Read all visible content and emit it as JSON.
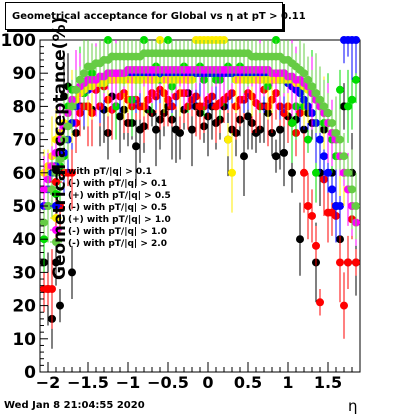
{
  "chart_data": {
    "type": "scatter",
    "title": "Geometrical acceptance for Global vs   η at pT > 0.11",
    "xlabel": "η",
    "ylabel": "Geometrical acceptance(%)",
    "xlim": [
      -2.1,
      1.9
    ],
    "ylim": [
      0,
      100
    ],
    "grid": false,
    "legend_placement": "center-left",
    "x_ticks": [
      -2,
      -1.5,
      -1,
      -0.5,
      0,
      0.5,
      1,
      1.5
    ],
    "x_tick_labels": [
      "−2",
      "−1.5",
      "−1",
      "−0.5",
      "0",
      "0.5",
      "1",
      "1.5"
    ],
    "y_ticks": [
      0,
      10,
      20,
      30,
      40,
      50,
      60,
      70,
      80,
      90,
      100
    ],
    "y_tick_labels": [
      "0",
      "10",
      "20",
      "30",
      "40",
      "50",
      "60",
      "70",
      "80",
      "90",
      "100"
    ],
    "x": [
      -2.05,
      -2.0,
      -1.95,
      -1.9,
      -1.85,
      -1.8,
      -1.75,
      -1.7,
      -1.65,
      -1.6,
      -1.55,
      -1.5,
      -1.45,
      -1.4,
      -1.35,
      -1.3,
      -1.25,
      -1.2,
      -1.15,
      -1.1,
      -1.05,
      -1.0,
      -0.95,
      -0.9,
      -0.85,
      -0.8,
      -0.75,
      -0.7,
      -0.65,
      -0.6,
      -0.55,
      -0.5,
      -0.45,
      -0.4,
      -0.35,
      -0.3,
      -0.25,
      -0.2,
      -0.15,
      -0.1,
      -0.05,
      0.0,
      0.05,
      0.1,
      0.15,
      0.2,
      0.25,
      0.3,
      0.35,
      0.4,
      0.45,
      0.5,
      0.55,
      0.6,
      0.65,
      0.7,
      0.75,
      0.8,
      0.85,
      0.9,
      0.95,
      1.0,
      1.05,
      1.1,
      1.15,
      1.2,
      1.25,
      1.3,
      1.35,
      1.4,
      1.45,
      1.5,
      1.55,
      1.6,
      1.65,
      1.7,
      1.75,
      1.8,
      1.85
    ],
    "series": [
      {
        "name": "with pT/|q| > 0.1",
        "color": "#000000",
        "values": [
          33,
          25,
          16,
          33,
          20,
          83,
          86,
          30,
          72,
          80,
          84,
          80,
          79,
          85,
          80,
          79,
          72,
          83,
          80,
          77,
          79,
          75,
          75,
          68,
          73,
          74,
          79,
          78,
          73,
          76,
          78,
          80,
          76,
          73,
          72,
          79,
          84,
          73,
          80,
          78,
          74,
          77,
          80,
          75,
          76,
          80,
          70,
          73,
          72,
          76,
          65,
          77,
          75,
          72,
          73,
          80,
          78,
          72,
          65,
          73,
          66,
          77,
          60,
          76,
          40,
          73,
          78,
          75,
          33,
          60,
          73,
          78,
          60,
          50,
          40,
          80,
          33,
          60,
          33
        ]
      },
      {
        "name": "(-) with pT/|q| > 0.1",
        "color": "#ff0000",
        "values": [
          25,
          25,
          25,
          50,
          50,
          60,
          60,
          60,
          75,
          78,
          80,
          80,
          78,
          85,
          80,
          86,
          82,
          79,
          80,
          83,
          84,
          82,
          80,
          82,
          80,
          80,
          82,
          84,
          83,
          85,
          84,
          82,
          80,
          83,
          84,
          84,
          80,
          82,
          83,
          80,
          80,
          82,
          83,
          80,
          81,
          82,
          83,
          84,
          80,
          82,
          82,
          84,
          83,
          81,
          80,
          85,
          80,
          82,
          84,
          80,
          78,
          80,
          75,
          72,
          78,
          60,
          50,
          47,
          38,
          21,
          58,
          48,
          48,
          47,
          33,
          20,
          33,
          46,
          33
        ]
      },
      {
        "name": "(+) with pT/|q| > 0.5",
        "color": "#00dd00",
        "values": [
          40,
          50,
          55,
          60,
          62,
          65,
          80,
          85,
          85,
          88,
          84,
          88,
          90,
          88,
          88,
          88,
          100,
          95,
          80,
          90,
          88,
          90,
          82,
          88,
          88,
          100,
          90,
          88,
          92,
          88,
          90,
          100,
          86,
          88,
          90,
          92,
          88,
          90,
          90,
          92,
          88,
          90,
          90,
          88,
          88,
          90,
          92,
          90,
          88,
          92,
          90,
          88,
          90,
          95,
          88,
          90,
          86,
          88,
          100,
          88,
          90,
          88,
          75,
          80,
          85,
          80,
          70,
          86,
          60,
          70,
          75,
          78,
          70,
          65,
          85,
          60,
          80,
          82,
          88
        ]
      },
      {
        "name": "(-) with pT/|q| > 0.5",
        "color": "#0000ff",
        "values": [
          50,
          55,
          60,
          62,
          65,
          66,
          70,
          75,
          80,
          84,
          85,
          85,
          86,
          87,
          87,
          88,
          88,
          88,
          89,
          89,
          89,
          89,
          90,
          90,
          90,
          90,
          90,
          90,
          90,
          90,
          90,
          90,
          90,
          90,
          90,
          90,
          90,
          90,
          90,
          90,
          90,
          90,
          90,
          90,
          90,
          90,
          90,
          90,
          90,
          90,
          90,
          89,
          89,
          89,
          89,
          89,
          89,
          88,
          88,
          88,
          88,
          87,
          86,
          85,
          84,
          82,
          80,
          78,
          75,
          70,
          65,
          60,
          55,
          50,
          50,
          100,
          100,
          100,
          100
        ]
      },
      {
        "name": "(+) with pT/|q| > 1.0",
        "color": "#ffee00",
        "values": [
          60,
          62,
          65,
          70,
          72,
          75,
          78,
          80,
          82,
          84,
          85,
          86,
          86,
          87,
          87,
          87,
          88,
          88,
          88,
          88,
          88,
          88,
          88,
          88,
          88,
          88,
          88,
          88,
          88,
          100,
          88,
          88,
          88,
          88,
          88,
          88,
          88,
          88,
          100,
          100,
          100,
          100,
          100,
          100,
          100,
          100,
          70,
          60,
          88,
          88,
          88,
          88,
          88,
          88,
          88,
          88,
          88,
          88,
          88,
          88,
          88,
          88,
          88,
          87,
          87,
          86,
          85,
          84,
          82,
          80,
          78,
          75,
          72,
          70,
          65,
          60,
          55,
          50,
          45
        ]
      },
      {
        "name": "(-) with pT/|q| > 1.0",
        "color": "#ff00ff",
        "values": [
          55,
          58,
          62,
          66,
          70,
          74,
          78,
          82,
          85,
          86,
          87,
          88,
          88,
          88,
          89,
          89,
          90,
          90,
          90,
          90,
          90,
          91,
          91,
          91,
          91,
          91,
          91,
          91,
          91,
          91,
          91,
          91,
          91,
          91,
          91,
          91,
          91,
          91,
          91,
          91,
          91,
          91,
          91,
          91,
          91,
          91,
          91,
          91,
          91,
          91,
          91,
          91,
          91,
          91,
          91,
          91,
          91,
          90,
          90,
          90,
          90,
          89,
          89,
          88,
          88,
          87,
          86,
          84,
          82,
          80,
          78,
          75,
          72,
          70,
          65,
          60,
          55,
          50,
          45
        ]
      },
      {
        "name": "(-) with pT/|q| > 2.0",
        "color": "#66cc44",
        "values": [
          45,
          50,
          55,
          60,
          64,
          70,
          74,
          80,
          85,
          88,
          90,
          92,
          92,
          93,
          93,
          94,
          94,
          95,
          95,
          95,
          95,
          95,
          95,
          95,
          95,
          96,
          96,
          96,
          96,
          96,
          96,
          96,
          96,
          96,
          96,
          96,
          96,
          96,
          96,
          96,
          96,
          96,
          96,
          96,
          96,
          96,
          96,
          96,
          96,
          96,
          96,
          96,
          95,
          95,
          95,
          95,
          95,
          95,
          95,
          95,
          94,
          94,
          93,
          92,
          91,
          90,
          88,
          86,
          84,
          82,
          80,
          78,
          75,
          72,
          70,
          65,
          60,
          55,
          50
        ]
      }
    ]
  },
  "legend_labels": [
    "with pT/|q| > 0.1",
    "(-) with pT/|q| > 0.1",
    "(+) with pT/|q| > 0.5",
    "(-) with pT/|q| > 0.5",
    "(+) with pT/|q| > 1.0",
    "(-) with pT/|q| > 1.0",
    "(-) with pT/|q| > 2.0"
  ],
  "timestamp": "Wed Jan  8 21:04:55 2020"
}
